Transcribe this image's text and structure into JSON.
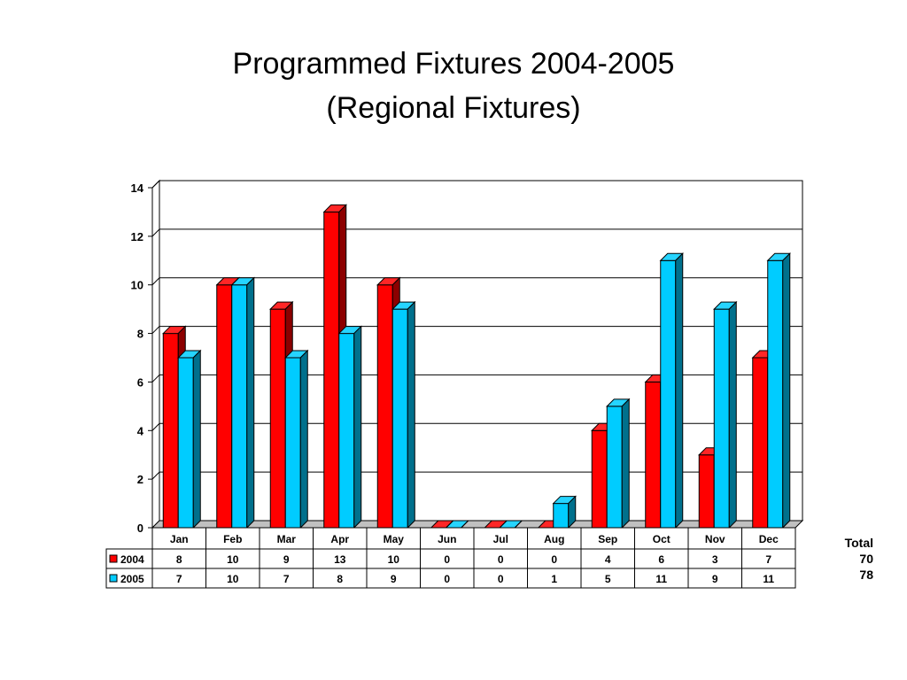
{
  "title": "Programmed Fixtures 2004-2005",
  "subtitle": "(Regional Fixtures)",
  "colors": {
    "2004": "#ff0000",
    "2005": "#00ccff"
  },
  "chart_data": {
    "type": "bar",
    "title": "Programmed Fixtures 2004-2005",
    "subtitle": "(Regional Fixtures)",
    "categories": [
      "Jan",
      "Feb",
      "Mar",
      "Apr",
      "May",
      "Jun",
      "Jul",
      "Aug",
      "Sep",
      "Oct",
      "Nov",
      "Dec"
    ],
    "series": [
      {
        "name": "2004",
        "values": [
          8,
          10,
          9,
          13,
          10,
          0,
          0,
          0,
          4,
          6,
          3,
          7
        ]
      },
      {
        "name": "2005",
        "values": [
          7,
          10,
          7,
          8,
          9,
          0,
          0,
          1,
          5,
          11,
          9,
          11
        ]
      }
    ],
    "ylim": [
      0,
      14
    ],
    "yticks": [
      0,
      2,
      4,
      6,
      8,
      10,
      12,
      14
    ],
    "grid": true,
    "legend": "data-table",
    "xlabel": "",
    "ylabel": ""
  },
  "totals": {
    "label": "Total",
    "values": [
      "70",
      "78"
    ]
  }
}
